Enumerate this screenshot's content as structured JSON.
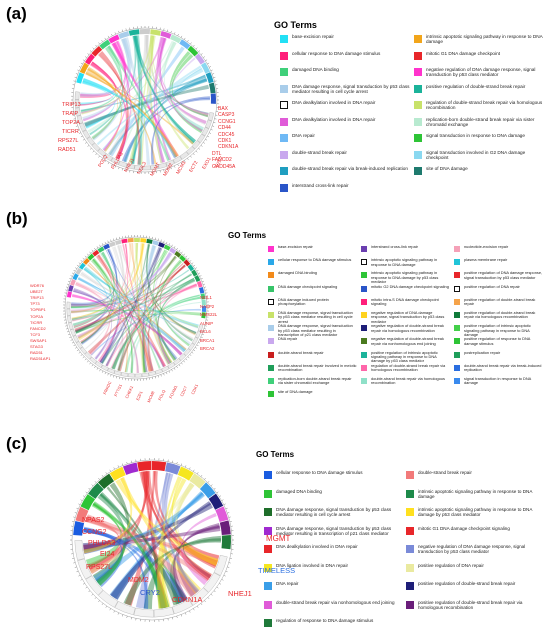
{
  "panels": [
    {
      "label": "(a)",
      "legend_title": "GO Terms",
      "terms": [
        {
          "text": "base-excision repair",
          "color": "#22e0f5"
        },
        {
          "text": "intrinsic apoptotic signaling pathway in response to DNA damage",
          "color": "#f2a51a"
        },
        {
          "text": "cellular response to DNA damage stimulus",
          "color": "#ff1f7a"
        },
        {
          "text": "mitotic G1 DNA damage checkpoint",
          "color": "#e8262a"
        },
        {
          "text": "damaged DNA binding",
          "color": "#3fd07a"
        },
        {
          "text": "negative regulation of DNA damage response, signal transduction by p53 class mediator",
          "color": "#ff33cc"
        },
        {
          "text": "DNA damage response, signal transduction by p53 class mediator resulting in cell cycle arrest",
          "color": "#a9cdea"
        },
        {
          "text": "positive regulation of double-strand break repair",
          "color": "#1bb39a"
        },
        {
          "text": "DNA dealkylation involved in DNA repair",
          "color": "#ffffff",
          "hollow": true
        },
        {
          "text": "regulation of double-strand break repair via homologous recombination",
          "color": "#c8e26a"
        },
        {
          "text": "DNA dealkylation involved in DNA repair",
          "color": "#e05bd8"
        },
        {
          "text": "replication-born double-strand break repair via sister chromatid exchange",
          "color": "#b8ead0"
        },
        {
          "text": "DNA repair",
          "color": "#6fb9f5"
        },
        {
          "text": "signal transduction in response to DNA damage",
          "color": "#2ec436"
        },
        {
          "text": "double-strand break repair",
          "color": "#c9a8ee"
        },
        {
          "text": "signal transduction involved in G2 DNA damage checkpoint",
          "color": "#8ad8f0"
        },
        {
          "text": "double-strand break repair via break-induced replication",
          "color": "#1f9ec0"
        },
        {
          "text": "site of DNA damage",
          "color": "#1e7a6e"
        },
        {
          "text": "interstrand cross-link repair",
          "color": "#2a55c8"
        }
      ],
      "genes_left": [
        "TRIP13",
        "TRAIP",
        "TOP2A",
        "TICRR",
        "RPS27L",
        "RAD51"
      ],
      "genes_right": [
        "BAX",
        "CASP3",
        "CCNG1",
        "CD44",
        "CDC45",
        "CDK1",
        "CDKN1A",
        "DTL",
        "FANCD2",
        "GADD45A"
      ],
      "genes_bottom": [
        "POLQ",
        "PHLDA3",
        "NHEJ1",
        "NEIL3",
        "MGMT",
        "MDM2",
        "MCM3",
        "ECT2",
        "EXO1",
        "E2F7"
      ]
    },
    {
      "label": "(b)",
      "legend_title": "GO Terms",
      "terms": [
        {
          "text": "base-excision repair",
          "color": "#ff33cc"
        },
        {
          "text": "interstrand cross-link repair",
          "color": "#6b3fb0"
        },
        {
          "text": "nucleotide-excision repair",
          "color": "#f5a1b8"
        },
        {
          "text": "cellular response to DNA damage stimulus",
          "color": "#2aa8e8"
        },
        {
          "text": "intrinsic apoptotic signaling pathway in response to DNA damage",
          "color": "#ffffff",
          "hollow": true
        },
        {
          "text": "plasma membrane repair",
          "color": "#20c4d8"
        },
        {
          "text": "damaged DNA binding",
          "color": "#f28a1a"
        },
        {
          "text": "intrinsic apoptotic signaling pathway in response to DNA damage by p53 class mediator",
          "color": "#2ec436"
        },
        {
          "text": "positive regulation of DNA damage response, signal transduction by p53 class mediator",
          "color": "#e8262a"
        },
        {
          "text": "DNA damage checkpoint signaling",
          "color": "#37c46a"
        },
        {
          "text": "mitotic G2 DNA damage checkpoint signaling",
          "color": "#2a55c8"
        },
        {
          "text": "positive regulation of DNA repair",
          "color": "#ffffff",
          "hollow": true
        },
        {
          "text": "DNA damage induced protein phosphorylation",
          "color": "#ffffff",
          "hollow": true
        },
        {
          "text": "mitotic intra-S DNA damage checkpoint signaling",
          "color": "#ff1f7a"
        },
        {
          "text": "positive regulation of double-strand break repair",
          "color": "#f5a34a"
        },
        {
          "text": "DNA damage response, signal transduction by p53 class mediator resulting in cell cycle arrest",
          "color": "#c8e26a"
        },
        {
          "text": "negative regulation of DNA damage response, signal transduction by p53 class mediator",
          "color": "#ffd21f"
        },
        {
          "text": "positive regulation of double-strand break repair via homologous recombination",
          "color": "#0f7a3a"
        },
        {
          "text": "DNA damage response, signal transduction by p53 class mediator resulting in transcription of p21 class mediator",
          "color": "#a9cdea"
        },
        {
          "text": "negative regulation of double-strand break repair via homologous recombination",
          "color": "#1e1e78"
        },
        {
          "text": "positive regulation of intrinsic apoptotic signaling pathway in response to DNA damage",
          "color": "#44d04a"
        },
        {
          "text": "DNA repair",
          "color": "#c9a8ee"
        },
        {
          "text": "negative regulation of double-strand break repair via nonhomologous end joining",
          "color": "#4a7a1e"
        },
        {
          "text": "positive regulation of response to DNA damage stimulus",
          "color": "#2ec436"
        },
        {
          "text": "double-strand break repair",
          "color": "#c81e1e"
        },
        {
          "text": "positive regulation of intrinsic apoptotic signaling pathway in response to DNA damage by p53 class mediator",
          "color": "#1bb39a"
        },
        {
          "text": "postreplication repair",
          "color": "#1f9e5a"
        },
        {
          "text": "double-strand break repair involved in meiotic recombination",
          "color": "#1f9e5a"
        },
        {
          "text": "regulation of double-strand break repair via homologous recombination",
          "color": "#ff66aa"
        },
        {
          "text": "double-strand break repair via break-induced replication",
          "color": "#2a6ee0"
        },
        {
          "text": "replication-born double-strand break repair via sister chromatid exchange",
          "color": "#3fd07a"
        },
        {
          "text": "double-strand break repair via homologous recombination",
          "color": "#8fe0c8"
        },
        {
          "text": "signal transduction in response to DNA damage",
          "color": "#3a8aee"
        },
        {
          "text": "site of DNA damage",
          "color": "#2ec436"
        }
      ],
      "genes_left": [
        "WDR76",
        "UBE2T",
        "TRIP13",
        "TP73",
        "TOPBP1",
        "TOP2A",
        "TICRR",
        "FANCD2",
        "TCF3",
        "SWSAP1",
        "STAG3",
        "RAD51",
        "RAD51AP1"
      ],
      "genes_right": [
        "NEIL1",
        "NABP2",
        "MMS22L",
        "AUNIP",
        "BCL6",
        "BRCA1",
        "BRCA2"
      ],
      "genes_bottom": [
        "PRKDC",
        "PTTG1",
        "CHEK1",
        "E2F1",
        "MCM8",
        "POLQ",
        "FOXM1",
        "CDC7",
        "CDK1"
      ]
    },
    {
      "label": "(c)",
      "legend_title": "GO Terms",
      "terms": [
        {
          "text": "cellular response to DNA damage stimulus",
          "color": "#1a5ce0"
        },
        {
          "text": "double-strand break repair",
          "color": "#f27a7a"
        },
        {
          "text": "damaged DNA binding",
          "color": "#2ec436"
        },
        {
          "text": "intrinsic apoptotic signaling pathway in response to DNA damage",
          "color": "#1e8a4a"
        },
        {
          "text": "DNA damage response, signal transduction by p53 class mediator resulting in cell cycle arrest",
          "color": "#1e6e2a"
        },
        {
          "text": "intrinsic apoptotic signaling pathway in response to DNA damage by p53 class mediator",
          "color": "#ffe01f"
        },
        {
          "text": "DNA damage response, signal transduction by p53 class mediator resulting in transcription of p21 class mediator",
          "color": "#a02ad0"
        },
        {
          "text": "mitotic G1 DNA damage checkpoint signaling",
          "color": "#e8262a"
        },
        {
          "text": "DNA dealkylation involved in DNA repair",
          "color": "#e8262a"
        },
        {
          "text": "negative regulation of DNA damage response, signal transduction by p53 class mediator",
          "color": "#7a8ad8"
        },
        {
          "text": "DNA ligation involved in DNA repair",
          "color": "#f5e61f"
        },
        {
          "text": "positive regulation of DNA repair",
          "color": "#eaeaa0"
        },
        {
          "text": "DNA repair",
          "color": "#3a9ee8"
        },
        {
          "text": "positive regulation of double-strand break repair",
          "color": "#1e1e78"
        },
        {
          "text": "double-strand break repair via nonhomologous end joining",
          "color": "#e05bd8"
        },
        {
          "text": "positive regulation of double-strand break repair via homologous recombination",
          "color": "#6a1e7a"
        },
        {
          "text": "regulation of response to DNA damage stimulus",
          "color": "#1f7a3a"
        }
      ],
      "genes": [
        {
          "text": "NPAS2",
          "color": "#e8262a"
        },
        {
          "text": "CCNG2",
          "color": "#e8262a"
        },
        {
          "text": "PHLDA3",
          "color": "#e8262a"
        },
        {
          "text": "EI24",
          "color": "#e8262a"
        },
        {
          "text": "RPS27L",
          "color": "#e8262a"
        },
        {
          "text": "MDM2",
          "color": "#e8262a"
        },
        {
          "text": "CRY2",
          "color": "#2a55c8"
        },
        {
          "text": "CDKN1A",
          "color": "#e8262a"
        },
        {
          "text": "NHEJ1",
          "color": "#e8262a"
        },
        {
          "text": "TIMELESS",
          "color": "#2a6ee0"
        },
        {
          "text": "MGMT",
          "color": "#e8262a"
        }
      ]
    }
  ]
}
